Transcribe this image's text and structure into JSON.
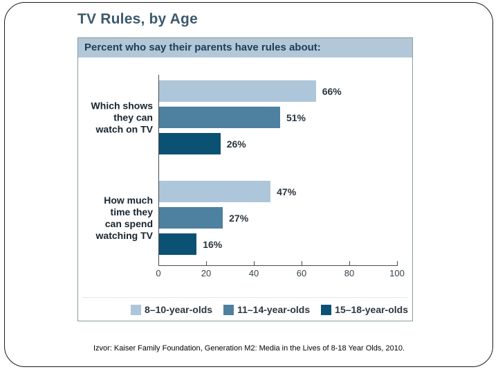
{
  "page": {
    "title": "TV Rules, by Age",
    "footer": "Izvor: Kaiser Family Foundation, Generation M2: Media in the Lives of 8-18  Year Olds, 2010."
  },
  "chart_data": {
    "type": "bar",
    "orientation": "horizontal",
    "title": "TV Rules, by Age",
    "subtitle": "Percent who say their parents have rules about:",
    "categories": [
      "Which shows they can watch on TV",
      "How much time they can spend watching TV"
    ],
    "category_lines": [
      [
        "Which shows",
        "they can",
        "watch on TV"
      ],
      [
        "How much",
        "time they",
        "can spend",
        "watching TV"
      ]
    ],
    "series": [
      {
        "name": "8–10-year-olds",
        "color": "#aec6da",
        "values": [
          66,
          47
        ]
      },
      {
        "name": "11–14-year-olds",
        "color": "#4e80a0",
        "values": [
          51,
          27
        ]
      },
      {
        "name": "15–18-year-olds",
        "color": "#0b5173",
        "values": [
          26,
          16
        ]
      }
    ],
    "value_suffix": "%",
    "xlim": [
      0,
      100
    ],
    "xticks": [
      0,
      20,
      40,
      60,
      80,
      100
    ],
    "legend_position": "bottom",
    "grid": false
  },
  "colors": {
    "frame_border": "#1a1a1a",
    "title_text": "#3c5a6d",
    "band_bg": "#b2c8d8",
    "band_text": "#1d3c55",
    "box_border": "#8a999e",
    "axis": "#4a4a4a"
  }
}
